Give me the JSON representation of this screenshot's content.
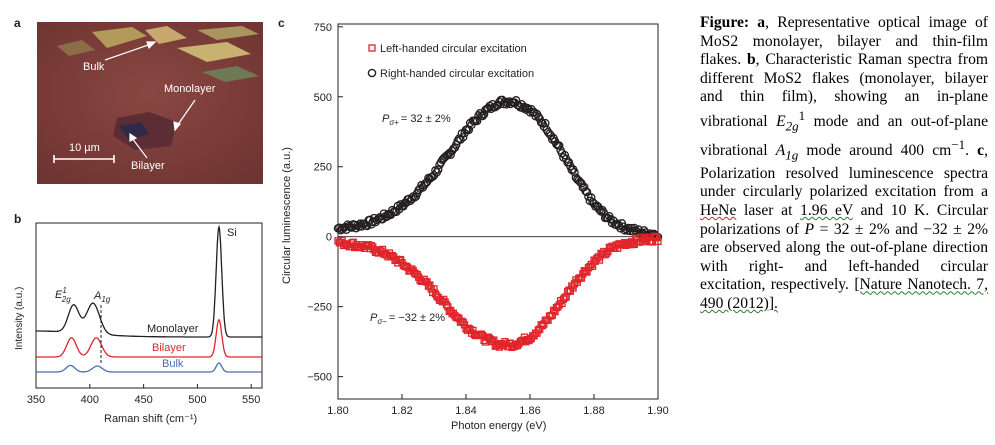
{
  "panel_a": {
    "letter": "a",
    "labels": {
      "bulk": "Bulk",
      "monolayer": "Monolayer",
      "bilayer": "Bilayer",
      "scale": "10 µm"
    }
  },
  "panel_b": {
    "letter": "b",
    "peaks": {
      "e2g": "E",
      "e2g_sup": "1",
      "e2g_sub": "2g",
      "a1g": "A",
      "a1g_sub": "1g",
      "si": "Si"
    },
    "curve_labels": {
      "monolayer": "Monolayer",
      "bilayer": "Bilayer",
      "bulk": "Bulk"
    },
    "xlabel": "Raman shift (cm⁻¹)",
    "ylabel": "Intensity (a.u.)",
    "xticks": [
      "350",
      "400",
      "450",
      "500",
      "550"
    ]
  },
  "panel_c": {
    "letter": "c",
    "legend": [
      "Left-handed circular excitation",
      "Right-handed circular excitation"
    ],
    "annotations": {
      "p_plus_sym": "P",
      "p_plus_sub": "σ+",
      "p_plus_val": "= 32 ± 2%",
      "p_minus_sym": "P",
      "p_minus_sub": "σ−",
      "p_minus_val": "= −32 ± 2%"
    },
    "xlabel": "Photon energy (eV)",
    "ylabel": "Circular luminescence (a.u.)",
    "xticks": [
      "1.80",
      "1.82",
      "1.84",
      "1.86",
      "1.88",
      "1.90"
    ],
    "yticks": [
      "750",
      "500",
      "250",
      "0",
      "−250",
      "−500"
    ]
  },
  "colors": {
    "red": "#e0242b",
    "black": "#231f20",
    "blue": "#4a6fb3",
    "dark": "#231f20"
  },
  "chart_data": [
    {
      "type": "line",
      "panel": "b",
      "xlabel": "Raman shift (cm⁻¹)",
      "ylabel": "Intensity (a.u.)",
      "xlim": [
        350,
        560
      ],
      "series": [
        {
          "name": "Monolayer",
          "color": "#231f20",
          "peaks": [
            [
              385,
              0.25
            ],
            [
              403,
              0.28
            ],
            [
              520,
              1.0
            ]
          ]
        },
        {
          "name": "Bilayer",
          "color": "#e0242b",
          "peaks": [
            [
              383,
              0.32
            ],
            [
              406,
              0.32
            ],
            [
              520,
              0.62
            ]
          ]
        },
        {
          "name": "Bulk",
          "color": "#4a6fb3",
          "peaks": [
            [
              382,
              0.22
            ],
            [
              407,
              0.2
            ],
            [
              520,
              0.3
            ]
          ]
        }
      ]
    },
    {
      "type": "scatter",
      "panel": "c",
      "xlabel": "Photon energy (eV)",
      "ylabel": "Circular luminescence (a.u.)",
      "xlim": [
        1.8,
        1.9
      ],
      "ylim": [
        -580,
        760
      ],
      "series": [
        {
          "name": "Right-handed circular excitation",
          "color": "#231f20",
          "marker": "circle",
          "x": [
            1.8,
            1.805,
            1.81,
            1.815,
            1.82,
            1.825,
            1.83,
            1.835,
            1.84,
            1.845,
            1.85,
            1.855,
            1.86,
            1.865,
            1.87,
            1.875,
            1.88,
            1.885,
            1.89,
            1.895,
            1.9
          ],
          "y": [
            30,
            38,
            50,
            75,
            110,
            160,
            225,
            300,
            380,
            440,
            480,
            485,
            455,
            395,
            300,
            200,
            115,
            60,
            30,
            15,
            8
          ]
        },
        {
          "name": "Left-handed circular excitation",
          "color": "#e0242b",
          "marker": "square",
          "x": [
            1.8,
            1.805,
            1.81,
            1.815,
            1.82,
            1.825,
            1.83,
            1.835,
            1.84,
            1.845,
            1.85,
            1.855,
            1.86,
            1.865,
            1.87,
            1.875,
            1.88,
            1.885,
            1.89,
            1.895,
            1.9
          ],
          "y": [
            -20,
            -28,
            -40,
            -60,
            -95,
            -140,
            -195,
            -260,
            -320,
            -360,
            -385,
            -385,
            -360,
            -305,
            -230,
            -150,
            -90,
            -45,
            -22,
            -12,
            -6
          ]
        }
      ]
    }
  ],
  "caption": {
    "fig_label": "Figure:",
    "a_letter": "a",
    "a_text": ", Representative optical image of MoS2 monolayer, bilayer and thin-film flakes.",
    "b_letter": "b",
    "b_text": ", Characteristic Raman spectra from different MoS2 flakes (monolayer, bilayer and thin film), showing an in-plane vibrational",
    "e2g": "E",
    "e2g_sub": "2g",
    "e2g_sup": "1",
    "mode_text": "mode and an out-of-plane vibrational",
    "a1g": "A",
    "a1g_sub": "1g",
    "mode_around": "mode around 400 cm",
    "cm_sup": "−1",
    "c_letter": "c",
    "c_text": ", Polarization resolved luminescence spectra under circularly polarized excitation from a",
    "hene": "HeNe",
    "laser_text": "laser at",
    "ev": "1.96 eV",
    "and_k": "and 10 K. Circular polarizations of",
    "p_sym": "P",
    "p_vals": "= 32 ± 2% and −32 ± 2% are observed along the out-of-plane direction with right- and left-handed circular excitation, respectively.",
    "citation": "[Nature Nanotech. 7, 490 (2012)]."
  }
}
